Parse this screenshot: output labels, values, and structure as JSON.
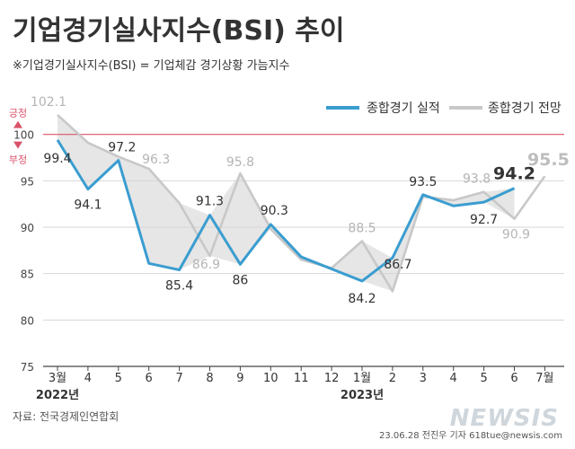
{
  "title": "기업경기실사지수(BSI) 추이",
  "subtitle": "※기업경기실사지수(BSI) = 기업체감 경기상황 가늠지수",
  "source": "자료: 전국경제인연합회",
  "credit": "23.06.28 전진우 기자 618tue@newsis.com",
  "watermark": "NEWSIS",
  "colors": {
    "actual": "#3a9dd0",
    "forecast": "#c8c8c8",
    "shade": "#e6e6e6",
    "ref_line": "#d9536a",
    "ref_text": "#d9536a",
    "text": "#333333"
  },
  "chart_data": {
    "type": "line",
    "x": [
      "3월",
      "4",
      "5",
      "6",
      "7",
      "8",
      "9",
      "10",
      "11",
      "12",
      "1월",
      "2",
      "3",
      "4",
      "5",
      "6",
      "7월"
    ],
    "year_labels": [
      {
        "at": "3월",
        "label": "2022년"
      },
      {
        "at": "1월",
        "label": "2023년"
      }
    ],
    "ylim": [
      75,
      105
    ],
    "y_ticks": [
      75,
      80,
      85,
      90,
      95,
      100
    ],
    "reference_line": {
      "value": 100,
      "above_label": "긍정",
      "below_label": "부정"
    },
    "grid": true,
    "legend_position": "top-right",
    "series": [
      {
        "name": "종합경기 실적",
        "values": [
          99.4,
          94.1,
          97.2,
          86.1,
          85.4,
          91.3,
          86,
          90.3,
          86.8,
          85.5,
          84.2,
          86.7,
          93.5,
          92.3,
          92.7,
          94.2,
          null
        ],
        "labels": [
          "99.4",
          "94.1",
          "97.2",
          "",
          "85.4",
          "91.3",
          "86",
          "90.3",
          "",
          "",
          "84.2",
          "86.7",
          "93.5",
          "",
          "92.7",
          "94.2",
          ""
        ]
      },
      {
        "name": "종합경기 전망",
        "values": [
          102.1,
          99.1,
          97.6,
          96.3,
          92.6,
          86.9,
          95.8,
          89.8,
          86.5,
          85.6,
          88.5,
          83.1,
          93.3,
          92.9,
          93.8,
          90.9,
          95.5
        ],
        "labels": [
          "102.1",
          "",
          "",
          "96.3",
          "",
          "86.9",
          "95.8",
          "",
          "",
          "",
          "88.5",
          "",
          "",
          "",
          "93.8",
          "90.9",
          "95.5"
        ]
      }
    ]
  }
}
